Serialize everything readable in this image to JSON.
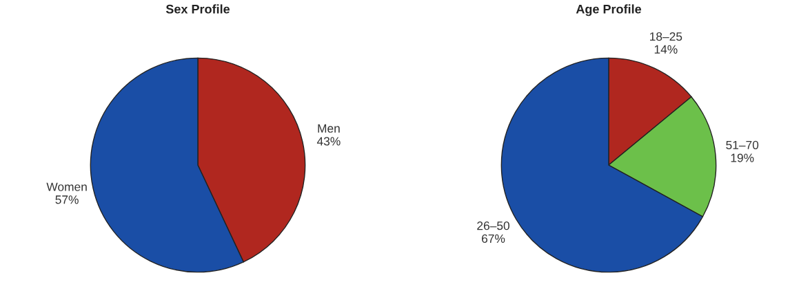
{
  "chart_data": [
    {
      "type": "pie",
      "title": "Sex Profile",
      "categories": [
        "Men",
        "Women"
      ],
      "values": [
        43,
        57
      ],
      "colors": [
        "#b0271f",
        "#1a4ea6"
      ],
      "value_labels": [
        "43%",
        "57%"
      ]
    },
    {
      "type": "pie",
      "title": "Age Profile",
      "categories": [
        "18–25",
        "51–70",
        "26–50"
      ],
      "values": [
        14,
        19,
        67
      ],
      "colors": [
        "#b0271f",
        "#6cc04a",
        "#1a4ea6"
      ],
      "value_labels": [
        "14%",
        "19%",
        "67%"
      ]
    }
  ]
}
